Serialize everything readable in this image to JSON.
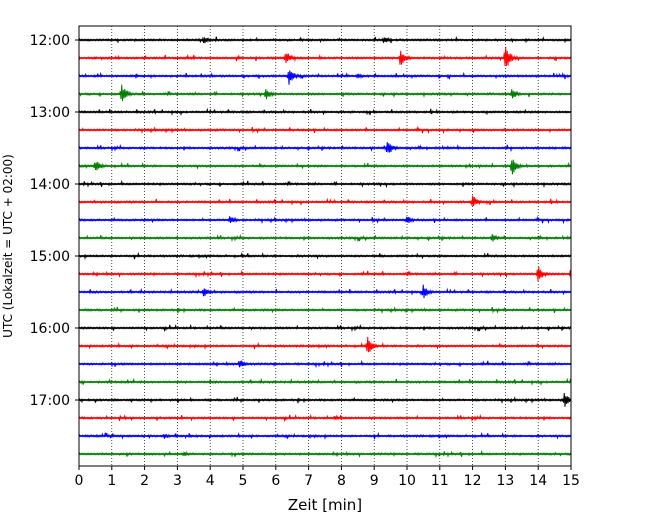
{
  "chart_data": {
    "type": "line",
    "subtype": "helicorder",
    "title": "",
    "xlabel": "Zeit  [min]",
    "ylabel": "UTC (Lokalzeit = UTC + 02:00)",
    "xlim": [
      0,
      15
    ],
    "x_ticks": [
      "0",
      "1",
      "2",
      "3",
      "4",
      "5",
      "6",
      "7",
      "8",
      "9",
      "10",
      "11",
      "12",
      "13",
      "14",
      "15"
    ],
    "y_tick_labels": [
      "12:00",
      "13:00",
      "14:00",
      "15:00",
      "16:00",
      "17:00"
    ],
    "grid": "vertical-dotted",
    "minutes_per_line": 15,
    "color_cycle": [
      "#000000",
      "#ff0000",
      "#0000ff",
      "#008000"
    ],
    "traces": [
      {
        "start": "12:00",
        "events": [
          {
            "x": 3.8,
            "amp": 0.5
          },
          {
            "x": 9.3,
            "amp": 0.45
          }
        ]
      },
      {
        "start": "12:15",
        "events": [
          {
            "x": 6.3,
            "amp": 0.9
          },
          {
            "x": 9.8,
            "amp": 1.0
          },
          {
            "x": 13.0,
            "amp": 1.6
          }
        ]
      },
      {
        "start": "12:30",
        "events": [
          {
            "x": 6.4,
            "amp": 1.0
          },
          {
            "x": 8.5,
            "amp": 0.35
          }
        ]
      },
      {
        "start": "12:45",
        "events": [
          {
            "x": 1.3,
            "amp": 1.1
          },
          {
            "x": 5.7,
            "amp": 0.7
          },
          {
            "x": 13.2,
            "amp": 0.7
          }
        ]
      },
      {
        "start": "13:00",
        "events": []
      },
      {
        "start": "13:15",
        "events": []
      },
      {
        "start": "13:30",
        "events": [
          {
            "x": 9.4,
            "amp": 1.0
          }
        ]
      },
      {
        "start": "13:45",
        "events": [
          {
            "x": 0.5,
            "amp": 0.8
          },
          {
            "x": 13.2,
            "amp": 1.1
          }
        ]
      },
      {
        "start": "14:00",
        "events": []
      },
      {
        "start": "14:15",
        "events": [
          {
            "x": 12.0,
            "amp": 0.8
          }
        ]
      },
      {
        "start": "14:30",
        "events": [
          {
            "x": 4.6,
            "amp": 0.6
          },
          {
            "x": 10.0,
            "amp": 0.5
          }
        ]
      },
      {
        "start": "14:45",
        "events": [
          {
            "x": 12.6,
            "amp": 0.5
          }
        ]
      },
      {
        "start": "15:00",
        "events": []
      },
      {
        "start": "15:15",
        "events": [
          {
            "x": 14.0,
            "amp": 1.0
          },
          {
            "x": 15.0,
            "amp": 1.0
          }
        ]
      },
      {
        "start": "15:30",
        "events": [
          {
            "x": 3.8,
            "amp": 0.6
          },
          {
            "x": 10.5,
            "amp": 0.9
          }
        ]
      },
      {
        "start": "15:45",
        "events": []
      },
      {
        "start": "16:00",
        "events": []
      },
      {
        "start": "16:15",
        "events": [
          {
            "x": 8.8,
            "amp": 1.1
          }
        ]
      },
      {
        "start": "16:30",
        "events": [
          {
            "x": 4.9,
            "amp": 0.6
          }
        ]
      },
      {
        "start": "16:45",
        "events": []
      },
      {
        "start": "17:00",
        "events": [
          {
            "x": 14.8,
            "amp": 0.9
          }
        ]
      },
      {
        "start": "17:15",
        "events": [
          {
            "x": 7.8,
            "amp": 0.3
          }
        ]
      },
      {
        "start": "17:30",
        "events": [
          {
            "x": 2.6,
            "amp": 0.35
          }
        ]
      },
      {
        "start": "17:45",
        "events": [
          {
            "x": 3.2,
            "amp": 0.3
          }
        ]
      }
    ]
  }
}
